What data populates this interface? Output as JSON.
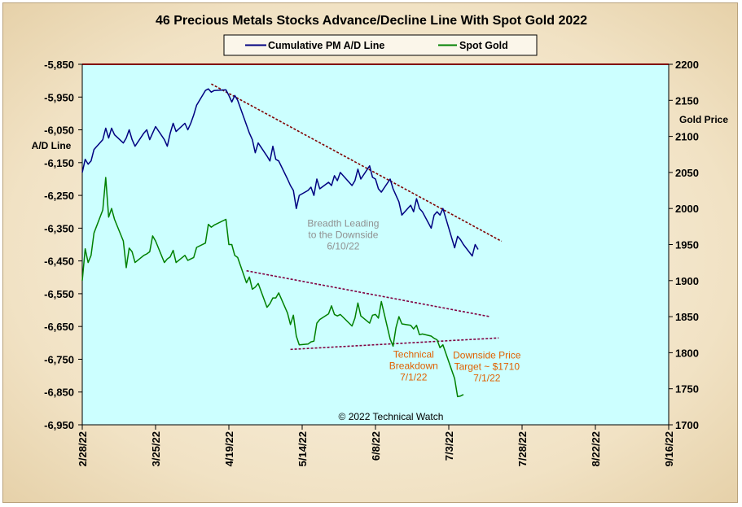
{
  "chart_data": {
    "type": "line",
    "title": "46 Precious Metals Stocks Advance/Decline Line With Spot Gold 2022",
    "left_axis": {
      "label": "A/D Line",
      "ylim": [
        -6950,
        -5850
      ],
      "ticks": [
        -5850,
        -5950,
        -6050,
        -6150,
        -6250,
        -6350,
        -6450,
        -6550,
        -6650,
        -6750,
        -6850,
        -6950
      ],
      "tick_labels": [
        "-5,850",
        "-5,950",
        "-6,050",
        "-6,150",
        "-6,250",
        "-6,350",
        "-6,450",
        "-6,550",
        "-6,650",
        "-6,750",
        "-6,850",
        "-6,950"
      ]
    },
    "right_axis": {
      "label": "Gold Price",
      "ylim": [
        1700,
        2200
      ],
      "ticks": [
        2200,
        2150,
        2100,
        2050,
        2000,
        1950,
        1900,
        1850,
        1800,
        1750,
        1700
      ],
      "tick_labels": [
        "2200",
        "2150",
        "2100",
        "2050",
        "2000",
        "1950",
        "1900",
        "1850",
        "1800",
        "1750",
        "1700"
      ]
    },
    "x_axis": {
      "range": [
        "2022-02-28",
        "2022-09-16"
      ],
      "tick_labels": [
        "2/28/22",
        "3/25/22",
        "4/19/22",
        "5/14/22",
        "6/8/22",
        "7/3/22",
        "7/28/22",
        "8/22/22",
        "9/16/22"
      ]
    },
    "colors": {
      "plot_bg": "#ccffff",
      "ad_line": "#000080",
      "gold": "#008000",
      "trend_ad": "#800000",
      "trend_gold": "#800040",
      "note_gray": "#909090",
      "note_orange": "#e06000",
      "top_border": "#800000"
    },
    "grid": false,
    "legend": {
      "position": "top-center",
      "entries": [
        "Cumulative PM A/D Line",
        "Spot Gold"
      ]
    },
    "series": [
      {
        "name": "Cumulative PM A/D Line",
        "axis": "left",
        "points": [
          [
            "2022-02-28",
            -6180
          ],
          [
            "2022-03-01",
            -6140
          ],
          [
            "2022-03-02",
            -6155
          ],
          [
            "2022-03-03",
            -6145
          ],
          [
            "2022-03-04",
            -6110
          ],
          [
            "2022-03-07",
            -6080
          ],
          [
            "2022-03-08",
            -6045
          ],
          [
            "2022-03-09",
            -6075
          ],
          [
            "2022-03-10",
            -6045
          ],
          [
            "2022-03-11",
            -6065
          ],
          [
            "2022-03-14",
            -6090
          ],
          [
            "2022-03-15",
            -6075
          ],
          [
            "2022-03-16",
            -6050
          ],
          [
            "2022-03-17",
            -6080
          ],
          [
            "2022-03-18",
            -6100
          ],
          [
            "2022-03-21",
            -6060
          ],
          [
            "2022-03-22",
            -6050
          ],
          [
            "2022-03-23",
            -6080
          ],
          [
            "2022-03-24",
            -6060
          ],
          [
            "2022-03-25",
            -6040
          ],
          [
            "2022-03-28",
            -6080
          ],
          [
            "2022-03-29",
            -6100
          ],
          [
            "2022-03-30",
            -6060
          ],
          [
            "2022-03-31",
            -6030
          ],
          [
            "2022-04-01",
            -6055
          ],
          [
            "2022-04-04",
            -6030
          ],
          [
            "2022-04-05",
            -6050
          ],
          [
            "2022-04-06",
            -6030
          ],
          [
            "2022-04-07",
            -6005
          ],
          [
            "2022-04-08",
            -5975
          ],
          [
            "2022-04-11",
            -5930
          ],
          [
            "2022-04-12",
            -5925
          ],
          [
            "2022-04-13",
            -5935
          ],
          [
            "2022-04-14",
            -5930
          ],
          [
            "2022-04-18",
            -5928
          ],
          [
            "2022-04-19",
            -5945
          ],
          [
            "2022-04-20",
            -5965
          ],
          [
            "2022-04-21",
            -5945
          ],
          [
            "2022-04-22",
            -5960
          ],
          [
            "2022-04-25",
            -6035
          ],
          [
            "2022-04-26",
            -6060
          ],
          [
            "2022-04-27",
            -6080
          ],
          [
            "2022-04-28",
            -6120
          ],
          [
            "2022-04-29",
            -6090
          ],
          [
            "2022-05-02",
            -6130
          ],
          [
            "2022-05-03",
            -6145
          ],
          [
            "2022-05-04",
            -6100
          ],
          [
            "2022-05-05",
            -6140
          ],
          [
            "2022-05-06",
            -6145
          ],
          [
            "2022-05-09",
            -6200
          ],
          [
            "2022-05-10",
            -6220
          ],
          [
            "2022-05-11",
            -6235
          ],
          [
            "2022-05-12",
            -6290
          ],
          [
            "2022-05-13",
            -6250
          ],
          [
            "2022-05-16",
            -6235
          ],
          [
            "2022-05-17",
            -6225
          ],
          [
            "2022-05-18",
            -6250
          ],
          [
            "2022-05-19",
            -6200
          ],
          [
            "2022-05-20",
            -6230
          ],
          [
            "2022-05-23",
            -6210
          ],
          [
            "2022-05-24",
            -6220
          ],
          [
            "2022-05-25",
            -6190
          ],
          [
            "2022-05-26",
            -6205
          ],
          [
            "2022-05-27",
            -6180
          ],
          [
            "2022-05-31",
            -6220
          ],
          [
            "2022-06-01",
            -6205
          ],
          [
            "2022-06-02",
            -6170
          ],
          [
            "2022-06-03",
            -6200
          ],
          [
            "2022-06-06",
            -6160
          ],
          [
            "2022-06-07",
            -6195
          ],
          [
            "2022-06-08",
            -6200
          ],
          [
            "2022-06-09",
            -6230
          ],
          [
            "2022-06-10",
            -6240
          ],
          [
            "2022-06-13",
            -6200
          ],
          [
            "2022-06-14",
            -6230
          ],
          [
            "2022-06-15",
            -6250
          ],
          [
            "2022-06-16",
            -6270
          ],
          [
            "2022-06-17",
            -6310
          ],
          [
            "2022-06-20",
            -6280
          ],
          [
            "2022-06-21",
            -6300
          ],
          [
            "2022-06-22",
            -6260
          ],
          [
            "2022-06-23",
            -6290
          ],
          [
            "2022-06-24",
            -6300
          ],
          [
            "2022-06-27",
            -6350
          ],
          [
            "2022-06-28",
            -6310
          ],
          [
            "2022-06-29",
            -6300
          ],
          [
            "2022-06-30",
            -6310
          ],
          [
            "2022-07-01",
            -6290
          ],
          [
            "2022-07-05",
            -6410
          ],
          [
            "2022-07-06",
            -6375
          ],
          [
            "2022-07-07",
            -6385
          ],
          [
            "2022-07-08",
            -6400
          ],
          [
            "2022-07-11",
            -6435
          ],
          [
            "2022-07-12",
            -6400
          ],
          [
            "2022-07-13",
            -6415
          ]
        ]
      },
      {
        "name": "Spot Gold",
        "axis": "right",
        "points": [
          [
            "2022-02-28",
            1900
          ],
          [
            "2022-03-01",
            1944
          ],
          [
            "2022-03-02",
            1925
          ],
          [
            "2022-03-03",
            1935
          ],
          [
            "2022-03-04",
            1966
          ],
          [
            "2022-03-07",
            1998
          ],
          [
            "2022-03-08",
            2043
          ],
          [
            "2022-03-09",
            1988
          ],
          [
            "2022-03-10",
            2000
          ],
          [
            "2022-03-11",
            1985
          ],
          [
            "2022-03-14",
            1955
          ],
          [
            "2022-03-15",
            1918
          ],
          [
            "2022-03-16",
            1945
          ],
          [
            "2022-03-17",
            1940
          ],
          [
            "2022-03-18",
            1925
          ],
          [
            "2022-03-21",
            1935
          ],
          [
            "2022-03-22",
            1937
          ],
          [
            "2022-03-23",
            1940
          ],
          [
            "2022-03-24",
            1962
          ],
          [
            "2022-03-25",
            1955
          ],
          [
            "2022-03-28",
            1925
          ],
          [
            "2022-03-29",
            1930
          ],
          [
            "2022-03-30",
            1933
          ],
          [
            "2022-03-31",
            1942
          ],
          [
            "2022-04-01",
            1925
          ],
          [
            "2022-04-04",
            1935
          ],
          [
            "2022-04-05",
            1928
          ],
          [
            "2022-04-06",
            1930
          ],
          [
            "2022-04-07",
            1932
          ],
          [
            "2022-04-08",
            1946
          ],
          [
            "2022-04-11",
            1952
          ],
          [
            "2022-04-12",
            1978
          ],
          [
            "2022-04-13",
            1974
          ],
          [
            "2022-04-14",
            1977
          ],
          [
            "2022-04-18",
            1985
          ],
          [
            "2022-04-19",
            1950
          ],
          [
            "2022-04-20",
            1950
          ],
          [
            "2022-04-21",
            1935
          ],
          [
            "2022-04-22",
            1932
          ],
          [
            "2022-04-25",
            1897
          ],
          [
            "2022-04-26",
            1905
          ],
          [
            "2022-04-27",
            1888
          ],
          [
            "2022-04-28",
            1891
          ],
          [
            "2022-04-29",
            1896
          ],
          [
            "2022-05-02",
            1863
          ],
          [
            "2022-05-03",
            1868
          ],
          [
            "2022-05-04",
            1876
          ],
          [
            "2022-05-05",
            1876
          ],
          [
            "2022-05-06",
            1883
          ],
          [
            "2022-05-09",
            1855
          ],
          [
            "2022-05-10",
            1839
          ],
          [
            "2022-05-11",
            1852
          ],
          [
            "2022-05-12",
            1823
          ],
          [
            "2022-05-13",
            1811
          ],
          [
            "2022-05-16",
            1812
          ],
          [
            "2022-05-17",
            1815
          ],
          [
            "2022-05-18",
            1816
          ],
          [
            "2022-05-19",
            1841
          ],
          [
            "2022-05-20",
            1846
          ],
          [
            "2022-05-23",
            1854
          ],
          [
            "2022-05-24",
            1865
          ],
          [
            "2022-05-25",
            1853
          ],
          [
            "2022-05-26",
            1851
          ],
          [
            "2022-05-27",
            1853
          ],
          [
            "2022-05-31",
            1837
          ],
          [
            "2022-06-01",
            1848
          ],
          [
            "2022-06-02",
            1869
          ],
          [
            "2022-06-03",
            1851
          ],
          [
            "2022-06-06",
            1841
          ],
          [
            "2022-06-07",
            1852
          ],
          [
            "2022-06-08",
            1853
          ],
          [
            "2022-06-09",
            1848
          ],
          [
            "2022-06-10",
            1871
          ],
          [
            "2022-06-13",
            1819
          ],
          [
            "2022-06-14",
            1809
          ],
          [
            "2022-06-15",
            1835
          ],
          [
            "2022-06-16",
            1850
          ],
          [
            "2022-06-17",
            1840
          ],
          [
            "2022-06-20",
            1838
          ],
          [
            "2022-06-21",
            1833
          ],
          [
            "2022-06-22",
            1838
          ],
          [
            "2022-06-23",
            1825
          ],
          [
            "2022-06-24",
            1826
          ],
          [
            "2022-06-27",
            1823
          ],
          [
            "2022-06-28",
            1820
          ],
          [
            "2022-06-29",
            1818
          ],
          [
            "2022-06-30",
            1807
          ],
          [
            "2022-07-01",
            1811
          ],
          [
            "2022-07-05",
            1764
          ],
          [
            "2022-07-06",
            1739
          ],
          [
            "2022-07-07",
            1740
          ],
          [
            "2022-07-08",
            1742
          ]
        ]
      }
    ],
    "trendlines": [
      {
        "axis": "left",
        "color_key": "trend_ad",
        "from": [
          "2022-04-13",
          -5910
        ],
        "to": [
          "2022-07-21",
          -6390
        ]
      },
      {
        "axis": "left",
        "color_key": "trend_gold",
        "from": [
          "2022-04-25",
          -6480
        ],
        "to": [
          "2022-07-17",
          -6620
        ]
      },
      {
        "axis": "left",
        "color_key": "trend_gold",
        "from": [
          "2022-05-10",
          -6720
        ],
        "to": [
          "2022-07-20",
          -6685
        ]
      }
    ],
    "annotations": [
      {
        "lines": [
          "Breadth Leading",
          "to the Downside",
          "6/10/22"
        ],
        "color_key": "note_gray",
        "at": [
          "2022-05-28",
          -6345
        ]
      },
      {
        "lines": [
          "Technical",
          "Breakdown",
          "7/1/22"
        ],
        "color_key": "note_orange",
        "at": [
          "2022-06-21",
          -6745
        ]
      },
      {
        "lines": [
          "Downside Price",
          "Target ~ $1710",
          "7/1/22"
        ],
        "color_key": "note_orange",
        "at": [
          "2022-07-16",
          -6748
        ]
      }
    ],
    "copyright": "© 2022 Technical Watch"
  }
}
